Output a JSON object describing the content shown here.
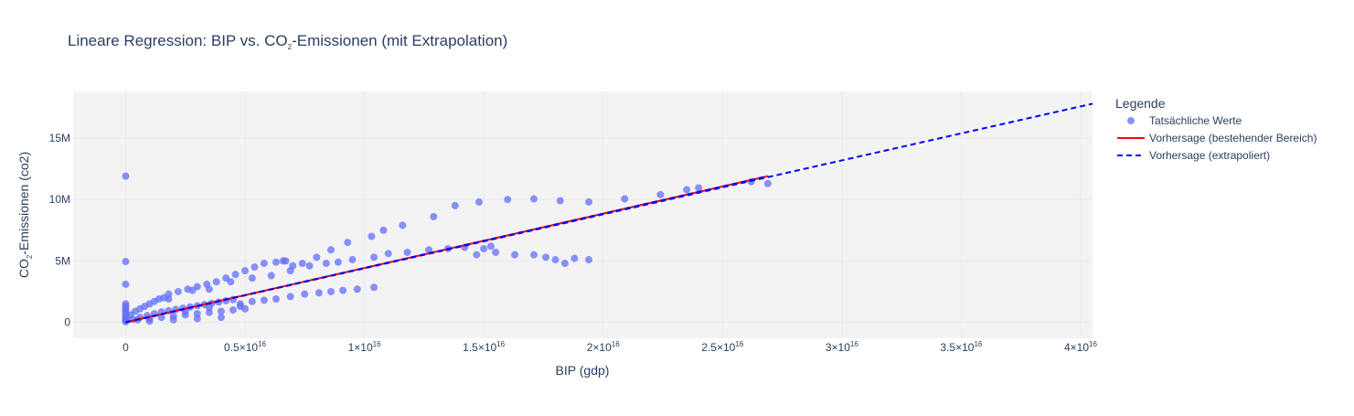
{
  "chart_data": {
    "type": "scatter",
    "title": {
      "prefix": "Lineare Regression: BIP vs. CO",
      "subscript": "2",
      "suffix": "-Emissionen (mit Extrapolation)"
    },
    "xlabel": "BIP (gdp)",
    "ylabel": {
      "prefix": "CO",
      "subscript": "2",
      "suffix": "-Emissionen (co2)"
    },
    "xlim": [
      -2200000000000000.0,
      4.05e+16
    ],
    "ylim": [
      -1300000,
      18800000
    ],
    "x_ticks": [
      {
        "value": 0,
        "mantissa": "0",
        "exponent": ""
      },
      {
        "value": 5000000000000000.0,
        "mantissa": "0.5×10",
        "exponent": "16"
      },
      {
        "value": 1e+16,
        "mantissa": "1×10",
        "exponent": "16"
      },
      {
        "value": 1.5e+16,
        "mantissa": "1.5×10",
        "exponent": "16"
      },
      {
        "value": 2e+16,
        "mantissa": "2×10",
        "exponent": "16"
      },
      {
        "value": 2.5e+16,
        "mantissa": "2.5×10",
        "exponent": "16"
      },
      {
        "value": 3e+16,
        "mantissa": "3×10",
        "exponent": "16"
      },
      {
        "value": 3.5e+16,
        "mantissa": "3.5×10",
        "exponent": "16"
      },
      {
        "value": 4e+16,
        "mantissa": "4×10",
        "exponent": "16"
      }
    ],
    "y_ticks": [
      {
        "value": 0,
        "label": "0"
      },
      {
        "value": 5000000,
        "label": "5M"
      },
      {
        "value": 10000000,
        "label": "10M"
      },
      {
        "value": 15000000,
        "label": "15M"
      }
    ],
    "grid": true,
    "legend": {
      "title": "Legende",
      "position": "right",
      "entries": [
        "Tatsächliche Werte",
        "Vorhersage (bestehender Bereich)",
        "Vorhersage (extrapoliert)"
      ]
    },
    "colors": {
      "points": "#636efa",
      "fit": "#ff0000",
      "extrapolated": "#0000ff",
      "plot_bg": "#f3f3f3",
      "grid": "#e8ebf2"
    },
    "series": [
      {
        "name": "Tatsächliche Werte",
        "type": "scatter",
        "points": [
          [
            0,
            11900000
          ],
          [
            0,
            4950000
          ],
          [
            0,
            3100000
          ],
          [
            0,
            1500000
          ],
          [
            0,
            1300000
          ],
          [
            0,
            1100000
          ],
          [
            0,
            900000
          ],
          [
            0,
            700000
          ],
          [
            0,
            500000
          ],
          [
            0,
            300000
          ],
          [
            0,
            150000
          ],
          [
            0,
            50000
          ],
          [
            200000000000000.0,
            600000
          ],
          [
            400000000000000.0,
            900000
          ],
          [
            600000000000000.0,
            1100000
          ],
          [
            800000000000000.0,
            1300000
          ],
          [
            1000000000000000.0,
            1500000
          ],
          [
            1200000000000000.0,
            1700000
          ],
          [
            1400000000000000.0,
            1900000
          ],
          [
            1600000000000000.0,
            2000000
          ],
          [
            1800000000000000.0,
            1900000
          ],
          [
            300000000000000.0,
            250000
          ],
          [
            600000000000000.0,
            400000
          ],
          [
            900000000000000.0,
            550000
          ],
          [
            1200000000000000.0,
            700000
          ],
          [
            1500000000000000.0,
            850000
          ],
          [
            1800000000000000.0,
            950000
          ],
          [
            2100000000000000.0,
            1050000
          ],
          [
            2400000000000000.0,
            1150000
          ],
          [
            2700000000000000.0,
            1250000
          ],
          [
            3000000000000000.0,
            1350000
          ],
          [
            3300000000000000.0,
            1450000
          ],
          [
            3600000000000000.0,
            1550000
          ],
          [
            3900000000000000.0,
            1650000
          ],
          [
            4200000000000000.0,
            1750000
          ],
          [
            4500000000000000.0,
            1850000
          ],
          [
            500000000000000.0,
            200000
          ],
          [
            1000000000000000.0,
            300000
          ],
          [
            1500000000000000.0,
            400000
          ],
          [
            2000000000000000.0,
            500000
          ],
          [
            2500000000000000.0,
            600000
          ],
          [
            3000000000000000.0,
            700000
          ],
          [
            3500000000000000.0,
            800000
          ],
          [
            4000000000000000.0,
            900000
          ],
          [
            4500000000000000.0,
            1000000
          ],
          [
            5000000000000000.0,
            1100000
          ],
          [
            1000000000000000.0,
            100000
          ],
          [
            2000000000000000.0,
            200000
          ],
          [
            3000000000000000.0,
            300000
          ],
          [
            4000000000000000.0,
            400000
          ],
          [
            2500000000000000.0,
            900000
          ],
          [
            3500000000000000.0,
            1200000
          ],
          [
            4800000000000000.0,
            1300000
          ],
          [
            2200000000000000.0,
            2500000
          ],
          [
            2600000000000000.0,
            2700000
          ],
          [
            3000000000000000.0,
            2900000
          ],
          [
            3400000000000000.0,
            3100000
          ],
          [
            3800000000000000.0,
            3300000
          ],
          [
            4200000000000000.0,
            3600000
          ],
          [
            4600000000000000.0,
            3900000
          ],
          [
            5000000000000000.0,
            4200000
          ],
          [
            5400000000000000.0,
            4500000
          ],
          [
            5800000000000000.0,
            4800000
          ],
          [
            6300000000000000.0,
            4900000
          ],
          [
            6700000000000000.0,
            5000000
          ],
          [
            1800000000000000.0,
            2300000
          ],
          [
            2800000000000000.0,
            2600000
          ],
          [
            3500000000000000.0,
            2700000
          ],
          [
            4400000000000000.0,
            3300000
          ],
          [
            5300000000000000.0,
            3600000
          ],
          [
            6100000000000000.0,
            3800000
          ],
          [
            6900000000000000.0,
            4200000
          ],
          [
            7400000000000000.0,
            4800000
          ],
          [
            8000000000000000.0,
            5300000
          ],
          [
            8600000000000000.0,
            5900000
          ],
          [
            9300000000000000.0,
            6500000
          ],
          [
            1.03e+16,
            7000000
          ],
          [
            1.08e+16,
            7500000
          ],
          [
            1.16e+16,
            7900000
          ],
          [
            1.29e+16,
            8600000
          ],
          [
            1.38e+16,
            9500000
          ],
          [
            1.48e+16,
            9800000
          ],
          [
            1.6e+16,
            10000000
          ],
          [
            1.71e+16,
            10050000
          ],
          [
            1.82e+16,
            9900000
          ],
          [
            1.94e+16,
            9800000
          ],
          [
            2.09e+16,
            10050000
          ],
          [
            2.24e+16,
            10400000
          ],
          [
            2.35e+16,
            10800000
          ],
          [
            2.4e+16,
            10950000
          ],
          [
            2.62e+16,
            11450000
          ],
          [
            2.69e+16,
            11300000
          ],
          [
            6600000000000000.0,
            5000000
          ],
          [
            7000000000000000.0,
            4600000
          ],
          [
            7700000000000000.0,
            4600000
          ],
          [
            8400000000000000.0,
            4800000
          ],
          [
            8900000000000000.0,
            4900000
          ],
          [
            9500000000000000.0,
            5100000
          ],
          [
            1.04e+16,
            5300000
          ],
          [
            1.1e+16,
            5600000
          ],
          [
            1.18e+16,
            5700000
          ],
          [
            1.27e+16,
            5900000
          ],
          [
            1.35e+16,
            6000000
          ],
          [
            1.42e+16,
            6100000
          ],
          [
            1.5e+16,
            6000000
          ],
          [
            1.53e+16,
            6200000
          ],
          [
            1.47e+16,
            5500000
          ],
          [
            1.55e+16,
            5700000
          ],
          [
            1.63e+16,
            5500000
          ],
          [
            1.71e+16,
            5500000
          ],
          [
            1.76e+16,
            5300000
          ],
          [
            1.8e+16,
            5100000
          ],
          [
            1.84e+16,
            4800000
          ],
          [
            1.88e+16,
            5200000
          ],
          [
            1.94e+16,
            5100000
          ],
          [
            4800000000000000.0,
            1500000
          ],
          [
            5300000000000000.0,
            1700000
          ],
          [
            5800000000000000.0,
            1800000
          ],
          [
            6300000000000000.0,
            1900000
          ],
          [
            6900000000000000.0,
            2100000
          ],
          [
            7500000000000000.0,
            2300000
          ],
          [
            8100000000000000.0,
            2400000
          ],
          [
            8600000000000000.0,
            2500000
          ],
          [
            9100000000000000.0,
            2600000
          ],
          [
            9700000000000000.0,
            2700000
          ],
          [
            1.04e+16,
            2850000
          ]
        ]
      },
      {
        "name": "Vorhersage (bestehender Bereich)",
        "type": "line",
        "points": [
          [
            0,
            0
          ],
          [
            2.69e+16,
            11900000
          ]
        ]
      },
      {
        "name": "Vorhersage (extrapoliert)",
        "type": "line",
        "dash": true,
        "points": [
          [
            0,
            0
          ],
          [
            4.05e+16,
            17800000
          ]
        ]
      }
    ]
  }
}
